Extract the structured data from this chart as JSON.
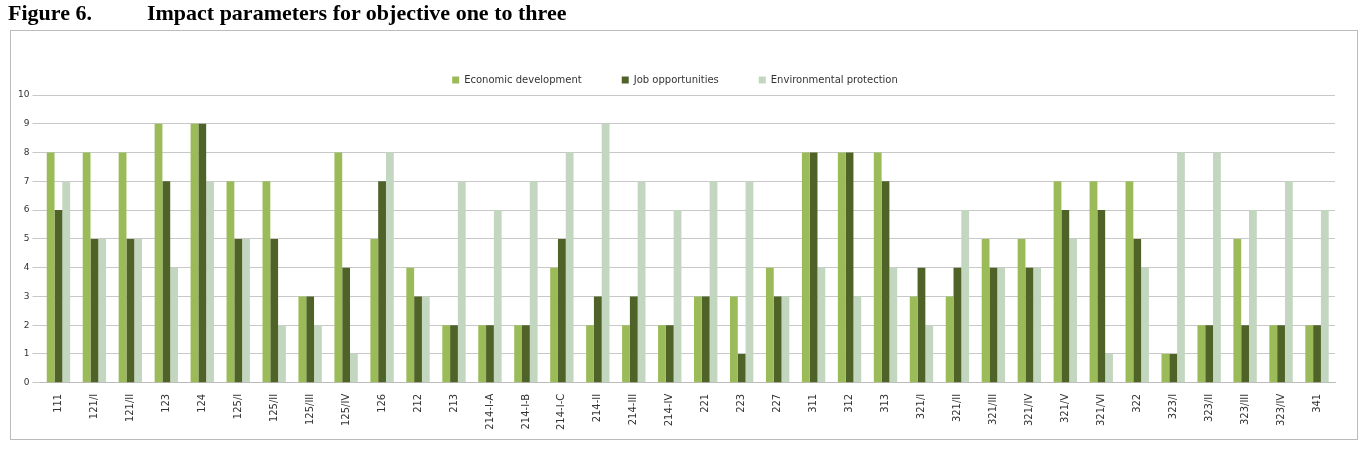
{
  "chart_data": {
    "type": "bar",
    "title": "Figure 6.          Impact parameters for objective one to three",
    "categories": [
      "111",
      "121/I",
      "121/II",
      "123",
      "124",
      "125/I",
      "125/II",
      "125/III",
      "125/IV",
      "126",
      "212",
      "213",
      "214-I-A",
      "214-I-B",
      "214-I-C",
      "214-II",
      "214-III",
      "214-IV",
      "221",
      "223",
      "227",
      "311",
      "312",
      "313",
      "321/I",
      "321/II",
      "321/III",
      "321/IV",
      "321/V",
      "321/VI",
      "322",
      "323/I",
      "323/II",
      "323/III",
      "323/IV",
      "341"
    ],
    "series": [
      {
        "name": "Economic development",
        "color": "#9bbb59",
        "values": [
          8,
          8,
          8,
          9,
          9,
          7,
          7,
          3,
          8,
          5,
          4,
          2,
          2,
          2,
          4,
          2,
          2,
          2,
          3,
          3,
          4,
          8,
          8,
          8,
          3,
          3,
          5,
          5,
          7,
          7,
          7,
          1,
          2,
          5,
          2,
          2
        ]
      },
      {
        "name": "Job opportunities",
        "color": "#4f6228",
        "values": [
          6,
          5,
          5,
          7,
          9,
          5,
          5,
          3,
          4,
          7,
          3,
          2,
          2,
          2,
          5,
          3,
          3,
          2,
          3,
          1,
          3,
          8,
          8,
          7,
          4,
          4,
          4,
          4,
          6,
          6,
          5,
          1,
          2,
          2,
          2,
          2
        ]
      },
      {
        "name": "Environmental protection",
        "color": "#c3d6bf",
        "values": [
          7,
          5,
          5,
          4,
          7,
          5,
          2,
          2,
          1,
          8,
          3,
          7,
          6,
          7,
          8,
          9,
          7,
          6,
          7,
          7,
          3,
          4,
          3,
          4,
          2,
          6,
          4,
          4,
          5,
          1,
          4,
          8,
          8,
          6,
          7,
          6
        ]
      }
    ],
    "ylim": [
      0,
      10
    ],
    "yticks": [
      0,
      1,
      2,
      3,
      4,
      5,
      6,
      7,
      8,
      9,
      10
    ],
    "grid": "y",
    "legend": "top"
  }
}
